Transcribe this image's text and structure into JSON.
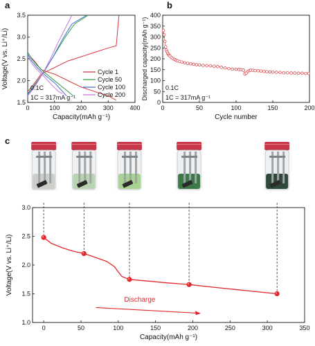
{
  "panel_labels": [
    "a",
    "b",
    "c"
  ],
  "vial_colors": [
    "#c9ccc6",
    "#b4cfa9",
    "#a2cf8a",
    "#2d6e3b",
    "#1d3b2a"
  ],
  "colors": {
    "cycle1": "#d6373b",
    "cycle50": "#2e9b3a",
    "cycle100": "#3d72d6",
    "cycle200": "#c478d8",
    "panel_b": "#d6373b",
    "panel_c": "#e0282b",
    "vial_cap": "#c6384a"
  },
  "chart_data": [
    {
      "id": "a",
      "type": "line",
      "xlabel": "Capacity(mAh g⁻¹)",
      "ylabel": "Voltage(V vs. Li⁺/Li)",
      "xlim": [
        0,
        400
      ],
      "ylim": [
        1.5,
        3.5
      ],
      "xticks": [
        0,
        100,
        200,
        300,
        400
      ],
      "yticks": [
        1.5,
        2.0,
        2.5,
        3.0,
        3.5
      ],
      "annotations": [
        "0.1C",
        "1C = 317mA g⁻¹"
      ],
      "legend_position": "bottom-right",
      "series": [
        {
          "name": "Cycle 1",
          "color": "#d6373b",
          "discharge": [
            [
              0,
              2.65
            ],
            [
              10,
              2.55
            ],
            [
              25,
              2.45
            ],
            [
              50,
              2.25
            ],
            [
              100,
              2.15
            ],
            [
              150,
              2.0
            ],
            [
              200,
              1.85
            ],
            [
              250,
              1.75
            ],
            [
              300,
              1.65
            ],
            [
              330,
              1.55
            ]
          ],
          "charge": [
            [
              0,
              1.75
            ],
            [
              20,
              1.9
            ],
            [
              50,
              2.15
            ],
            [
              100,
              2.3
            ],
            [
              150,
              2.45
            ],
            [
              200,
              2.55
            ],
            [
              250,
              2.65
            ],
            [
              300,
              2.75
            ],
            [
              330,
              2.8
            ],
            [
              340,
              3.5
            ]
          ]
        },
        {
          "name": "Cycle 50",
          "color": "#2e9b3a",
          "discharge": [
            [
              0,
              2.65
            ],
            [
              15,
              2.5
            ],
            [
              35,
              2.35
            ],
            [
              60,
              2.2
            ],
            [
              100,
              2.0
            ],
            [
              140,
              1.8
            ],
            [
              170,
              1.65
            ]
          ],
          "charge": [
            [
              0,
              1.7
            ],
            [
              25,
              1.9
            ],
            [
              60,
              2.2
            ],
            [
              100,
              2.6
            ],
            [
              140,
              3.0
            ],
            [
              175,
              3.3
            ],
            [
              225,
              3.5
            ]
          ]
        },
        {
          "name": "Cycle 100",
          "color": "#3d72d6",
          "discharge": [
            [
              0,
              2.6
            ],
            [
              15,
              2.45
            ],
            [
              35,
              2.3
            ],
            [
              60,
              2.15
            ],
            [
              100,
              1.95
            ],
            [
              130,
              1.75
            ],
            [
              145,
              1.65
            ]
          ],
          "charge": [
            [
              0,
              1.68
            ],
            [
              25,
              1.88
            ],
            [
              55,
              2.15
            ],
            [
              95,
              2.55
            ],
            [
              130,
              2.95
            ],
            [
              165,
              3.3
            ],
            [
              220,
              3.5
            ]
          ]
        },
        {
          "name": "Cycle 200",
          "color": "#c478d8",
          "discharge": [
            [
              0,
              2.55
            ],
            [
              15,
              2.4
            ],
            [
              35,
              2.25
            ],
            [
              60,
              2.1
            ],
            [
              90,
              1.9
            ],
            [
              115,
              1.75
            ],
            [
              130,
              1.7
            ]
          ],
          "charge": [
            [
              0,
              1.65
            ],
            [
              25,
              1.85
            ],
            [
              55,
              2.15
            ],
            [
              85,
              2.5
            ],
            [
              115,
              2.9
            ],
            [
              140,
              3.2
            ],
            [
              165,
              3.5
            ]
          ]
        }
      ]
    },
    {
      "id": "b",
      "type": "scatter",
      "xlabel": "Cycle number",
      "ylabel": "Discharged capacity(mAh g⁻¹)",
      "xlim": [
        0,
        200
      ],
      "ylim": [
        0,
        400
      ],
      "xticks": [
        0,
        50,
        100,
        150,
        200
      ],
      "yticks": [
        0,
        50,
        100,
        150,
        200,
        250,
        300,
        350,
        400
      ],
      "annotations": [
        "0.1C",
        "1C = 317mA g⁻¹"
      ],
      "series": [
        {
          "name": "",
          "color": "#d6373b",
          "points": [
            [
              1,
              330
            ],
            [
              2,
              310
            ],
            [
              3,
              280
            ],
            [
              4,
              255
            ],
            [
              5,
              240
            ],
            [
              6,
              232
            ],
            [
              7,
              225
            ],
            [
              8,
              220
            ],
            [
              9,
              216
            ],
            [
              10,
              212
            ],
            [
              12,
              206
            ],
            [
              14,
              201
            ],
            [
              16,
              197
            ],
            [
              18,
              194
            ],
            [
              20,
              191
            ],
            [
              23,
              188
            ],
            [
              26,
              185
            ],
            [
              30,
              182
            ],
            [
              34,
              179
            ],
            [
              38,
              177
            ],
            [
              42,
              175
            ],
            [
              46,
              173
            ],
            [
              50,
              172
            ],
            [
              55,
              170
            ],
            [
              60,
              169
            ],
            [
              65,
              168
            ],
            [
              70,
              166
            ],
            [
              75,
              164
            ],
            [
              80,
              161
            ],
            [
              85,
              158
            ],
            [
              90,
              155
            ],
            [
              95,
              153
            ],
            [
              100,
              152
            ],
            [
              104,
              151
            ],
            [
              107,
              150
            ],
            [
              110,
              148
            ],
            [
              112,
              130
            ],
            [
              114,
              135
            ],
            [
              116,
              142
            ],
            [
              118,
              146
            ],
            [
              120,
              148
            ],
            [
              123,
              147
            ],
            [
              126,
              146
            ],
            [
              130,
              145
            ],
            [
              134,
              144
            ],
            [
              138,
              142
            ],
            [
              142,
              141
            ],
            [
              146,
              140
            ],
            [
              150,
              139
            ],
            [
              155,
              138
            ],
            [
              160,
              137
            ],
            [
              165,
              136
            ],
            [
              170,
              136
            ],
            [
              175,
              135
            ],
            [
              180,
              135
            ],
            [
              185,
              134
            ],
            [
              190,
              134
            ],
            [
              195,
              133
            ],
            [
              199,
              133
            ]
          ]
        }
      ]
    },
    {
      "id": "c",
      "type": "line",
      "xlabel": "Capacity(mAh g⁻¹)",
      "ylabel": "Voltage(V vs. Li⁺/Li)",
      "xlim": [
        -15,
        350
      ],
      "ylim": [
        1.0,
        3.0
      ],
      "xticks": [
        0,
        50,
        100,
        150,
        200,
        250,
        300,
        350
      ],
      "yticks": [
        1.0,
        1.5,
        2.0,
        2.5,
        3.0
      ],
      "annotation": "Discharge",
      "curve": [
        [
          0,
          2.48
        ],
        [
          10,
          2.38
        ],
        [
          25,
          2.3
        ],
        [
          40,
          2.24
        ],
        [
          54,
          2.2
        ],
        [
          70,
          2.13
        ],
        [
          85,
          2.06
        ],
        [
          95,
          1.97
        ],
        [
          100,
          1.88
        ],
        [
          105,
          1.8
        ],
        [
          115,
          1.75
        ],
        [
          140,
          1.72
        ],
        [
          165,
          1.69
        ],
        [
          195,
          1.66
        ],
        [
          230,
          1.61
        ],
        [
          260,
          1.57
        ],
        [
          290,
          1.53
        ],
        [
          313,
          1.5
        ]
      ],
      "markers": [
        [
          0,
          2.48
        ],
        [
          54,
          2.2
        ],
        [
          115,
          1.75
        ],
        [
          195,
          1.66
        ],
        [
          313,
          1.5
        ]
      ]
    }
  ]
}
